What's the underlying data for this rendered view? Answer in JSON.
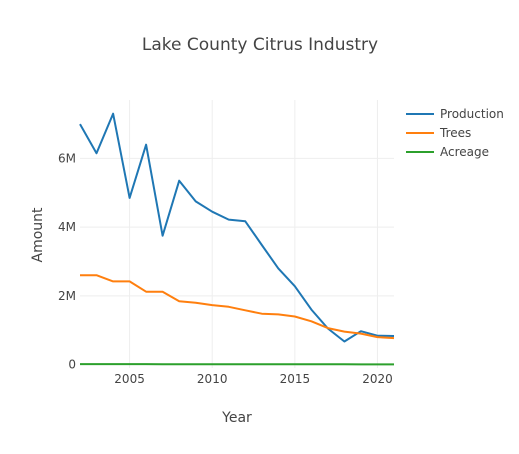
{
  "chart_data": {
    "type": "line",
    "title": "Lake County Citrus Industry",
    "xlabel": "Year",
    "ylabel": "Amount",
    "x": [
      2002,
      2003,
      2004,
      2005,
      2006,
      2007,
      2008,
      2009,
      2010,
      2011,
      2012,
      2013,
      2014,
      2015,
      2016,
      2017,
      2018,
      2019,
      2020,
      2021
    ],
    "xlim": [
      2002,
      2021
    ],
    "ylim": [
      -100000,
      7700000
    ],
    "x_ticks": [
      2005,
      2010,
      2015,
      2020
    ],
    "x_tick_labels": [
      "2005",
      "2010",
      "2015",
      "2020"
    ],
    "y_ticks": [
      0,
      2000000,
      4000000,
      6000000
    ],
    "y_tick_labels": [
      "0",
      "2M",
      "4M",
      "6M"
    ],
    "grid": true,
    "legend_position": "top-right",
    "series": [
      {
        "name": "Production",
        "color": "#1f77b4",
        "values": [
          7000000,
          6150000,
          7300000,
          4850000,
          6400000,
          3750000,
          5350000,
          4750000,
          4450000,
          4220000,
          4170000,
          3480000,
          2800000,
          2280000,
          1600000,
          1050000,
          670000,
          970000,
          840000,
          830000
        ]
      },
      {
        "name": "Trees",
        "color": "#ff7f0e",
        "values": [
          2600000,
          2600000,
          2420000,
          2420000,
          2120000,
          2120000,
          1840000,
          1800000,
          1730000,
          1680000,
          1580000,
          1480000,
          1460000,
          1400000,
          1260000,
          1060000,
          960000,
          900000,
          800000,
          770000
        ]
      },
      {
        "name": "Acreage",
        "color": "#2ca02c",
        "values": [
          14000,
          14000,
          13500,
          13000,
          12500,
          12000,
          11500,
          11000,
          10500,
          10000,
          9500,
          9000,
          8500,
          8000,
          7500,
          7000,
          6500,
          6000,
          5500,
          5000
        ]
      }
    ]
  }
}
